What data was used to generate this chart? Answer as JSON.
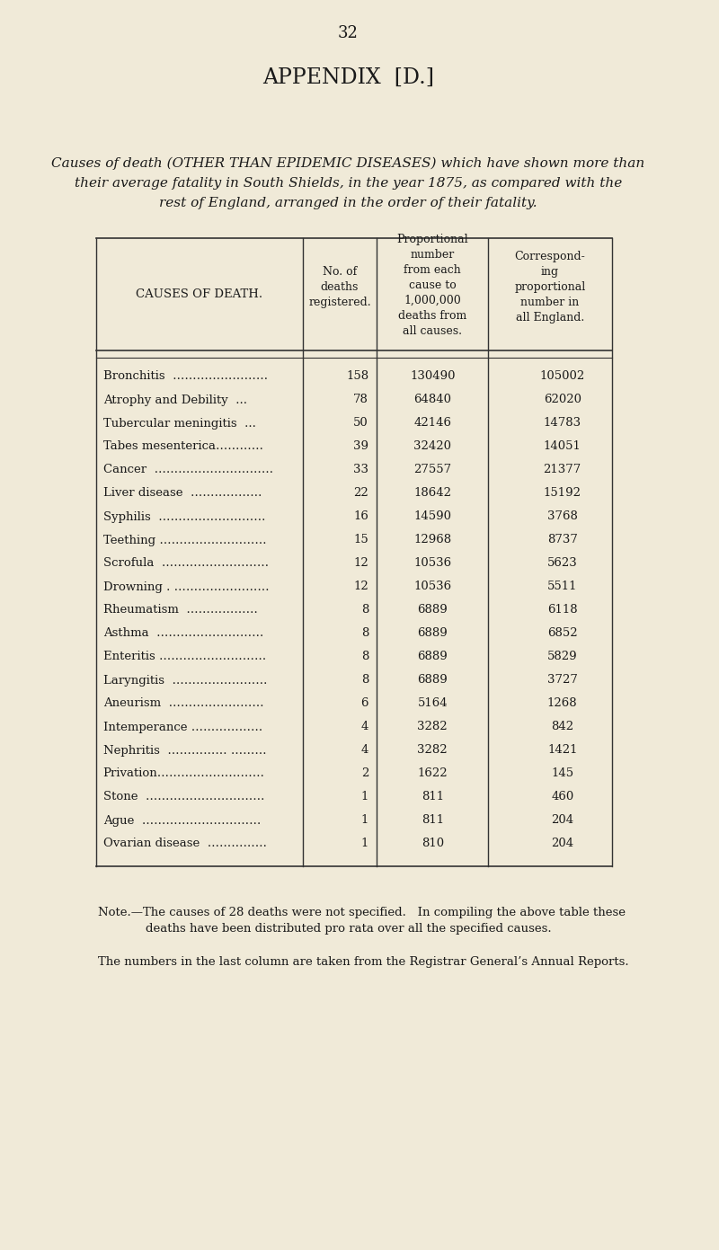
{
  "page_number": "32",
  "appendix_title": "APPENDIX  [D.]",
  "intro_text_line1": "Causes of death (OTHER THAN EPIDEMIC DISEASES) which have shown more than",
  "intro_text_line2": "their average fatality in South Shields, in the year 1875, as compared with the",
  "intro_text_line3": "rest of England, arranged in the order of their fatality.",
  "col_headers": [
    "CAUSES OF DEATH.",
    "No. of\ndeaths\nregistered.",
    "Proportional\nnumber\nfrom each\ncause to\n1,000,000\ndeaths from\nall causes.",
    "Correspond-\ning\nproportional\nnumber in\nall England."
  ],
  "rows": [
    [
      "Bronchitis  ……………………",
      "158",
      "130490",
      "105002"
    ],
    [
      "Atrophy and Debility  ...",
      "78",
      "64840",
      "62020"
    ],
    [
      "Tubercular meningitis  ...",
      "50",
      "42146",
      "14783"
    ],
    [
      "Tabes mesenterica…………",
      "39",
      "32420",
      "14051"
    ],
    [
      "Cancer  …………………………",
      "33",
      "27557",
      "21377"
    ],
    [
      "Liver disease  ………………",
      "22",
      "18642",
      "15192"
    ],
    [
      "Syphilis  ………………………",
      "16",
      "14590",
      "3768"
    ],
    [
      "Teething ………………………",
      "15",
      "12968",
      "8737"
    ],
    [
      "Scrofula  ………………………",
      "12",
      "10536",
      "5623"
    ],
    [
      "Drowning . ……………………",
      "12",
      "10536",
      "5511"
    ],
    [
      "Rheumatism  ………………",
      "8",
      "6889",
      "6118"
    ],
    [
      "Asthma  ………………………",
      "8",
      "6889",
      "6852"
    ],
    [
      "Enteritis ………………………",
      "8",
      "6889",
      "5829"
    ],
    [
      "Laryngitis  ……………………",
      "8",
      "6889",
      "3727"
    ],
    [
      "Aneurism  ……………………",
      "6",
      "5164",
      "1268"
    ],
    [
      "Intemperance ………………",
      "4",
      "3282",
      "842"
    ],
    [
      "Nephritis  …………… ………",
      "4",
      "3282",
      "1421"
    ],
    [
      "Privation………………………",
      "2",
      "1622",
      "145"
    ],
    [
      "Stone  …………………………",
      "1",
      "811",
      "460"
    ],
    [
      "Ague  …………………………",
      "1",
      "811",
      "204"
    ],
    [
      "Ovarian disease  ……………",
      "1",
      "810",
      "204"
    ]
  ],
  "note_line1": "Note.—The causes of 28 deaths were not specified.   In compiling the above table these",
  "note_line2": "deaths have been distributed pro rata over all the specified causes.",
  "note_line3": "The numbers in the last column are taken from the Registrar General’s Annual Reports.",
  "bg_color": "#f0ead8",
  "text_color": "#1a1a1a",
  "table_line_color": "#333333"
}
